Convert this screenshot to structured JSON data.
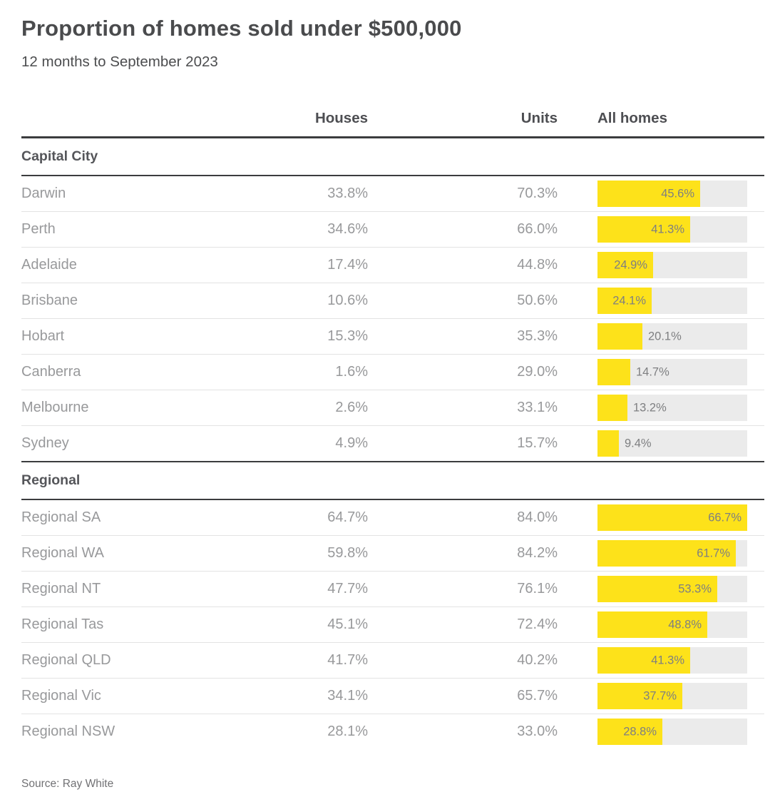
{
  "page": {
    "title": "Proportion of homes sold under $500,000",
    "subtitle": "12 months to September 2023",
    "source": "Source: Ray White"
  },
  "table": {
    "columns": {
      "houses": "Houses",
      "units": "Units",
      "all_homes": "All homes"
    },
    "bar_scale_max": 66.7,
    "colors": {
      "bar_fill": "#fde21a",
      "bar_track": "#ebebeb"
    },
    "sections": [
      {
        "label": "Capital City",
        "rows": [
          {
            "name": "Darwin",
            "houses": "33.8%",
            "units": "70.3%",
            "all_homes": "45.6%"
          },
          {
            "name": "Perth",
            "houses": "34.6%",
            "units": "66.0%",
            "all_homes": "41.3%"
          },
          {
            "name": "Adelaide",
            "houses": "17.4%",
            "units": "44.8%",
            "all_homes": "24.9%"
          },
          {
            "name": "Brisbane",
            "houses": "10.6%",
            "units": "50.6%",
            "all_homes": "24.1%"
          },
          {
            "name": "Hobart",
            "houses": "15.3%",
            "units": "35.3%",
            "all_homes": "20.1%"
          },
          {
            "name": "Canberra",
            "houses": "1.6%",
            "units": "29.0%",
            "all_homes": "14.7%"
          },
          {
            "name": "Melbourne",
            "houses": "2.6%",
            "units": "33.1%",
            "all_homes": "13.2%"
          },
          {
            "name": "Sydney",
            "houses": "4.9%",
            "units": "15.7%",
            "all_homes": "9.4%"
          }
        ]
      },
      {
        "label": "Regional",
        "rows": [
          {
            "name": "Regional SA",
            "houses": "64.7%",
            "units": "84.0%",
            "all_homes": "66.7%"
          },
          {
            "name": "Regional WA",
            "houses": "59.8%",
            "units": "84.2%",
            "all_homes": "61.7%"
          },
          {
            "name": "Regional NT",
            "houses": "47.7%",
            "units": "76.1%",
            "all_homes": "53.3%"
          },
          {
            "name": "Regional Tas",
            "houses": "45.1%",
            "units": "72.4%",
            "all_homes": "48.8%"
          },
          {
            "name": "Regional QLD",
            "houses": "41.7%",
            "units": "40.2%",
            "all_homes": "41.3%"
          },
          {
            "name": "Regional Vic",
            "houses": "34.1%",
            "units": "65.7%",
            "all_homes": "37.7%"
          },
          {
            "name": "Regional NSW",
            "houses": "28.1%",
            "units": "33.0%",
            "all_homes": "28.8%"
          }
        ]
      }
    ]
  },
  "chart_data": {
    "type": "table",
    "title": "Proportion of homes sold under $500,000",
    "subtitle": "12 months to September 2023",
    "source": "Source: Ray White",
    "columns": [
      "Houses",
      "Units",
      "All homes"
    ],
    "bar_column": "All homes",
    "bar_axis_max": 66.7,
    "sections": [
      {
        "label": "Capital City",
        "categories": [
          "Darwin",
          "Perth",
          "Adelaide",
          "Brisbane",
          "Hobart",
          "Canberra",
          "Melbourne",
          "Sydney"
        ],
        "series": [
          {
            "name": "Houses",
            "values": [
              33.8,
              34.6,
              17.4,
              10.6,
              15.3,
              1.6,
              2.6,
              4.9
            ]
          },
          {
            "name": "Units",
            "values": [
              70.3,
              66.0,
              44.8,
              50.6,
              35.3,
              29.0,
              33.1,
              15.7
            ]
          },
          {
            "name": "All homes",
            "values": [
              45.6,
              41.3,
              24.9,
              24.1,
              20.1,
              14.7,
              13.2,
              9.4
            ]
          }
        ]
      },
      {
        "label": "Regional",
        "categories": [
          "Regional SA",
          "Regional WA",
          "Regional NT",
          "Regional Tas",
          "Regional QLD",
          "Regional Vic",
          "Regional NSW"
        ],
        "series": [
          {
            "name": "Houses",
            "values": [
              64.7,
              59.8,
              47.7,
              45.1,
              41.7,
              34.1,
              28.1
            ]
          },
          {
            "name": "Units",
            "values": [
              84.0,
              84.2,
              76.1,
              72.4,
              40.2,
              65.7,
              33.0
            ]
          },
          {
            "name": "All homes",
            "values": [
              66.7,
              61.7,
              53.3,
              48.8,
              41.3,
              37.7,
              28.8
            ]
          }
        ]
      }
    ]
  }
}
